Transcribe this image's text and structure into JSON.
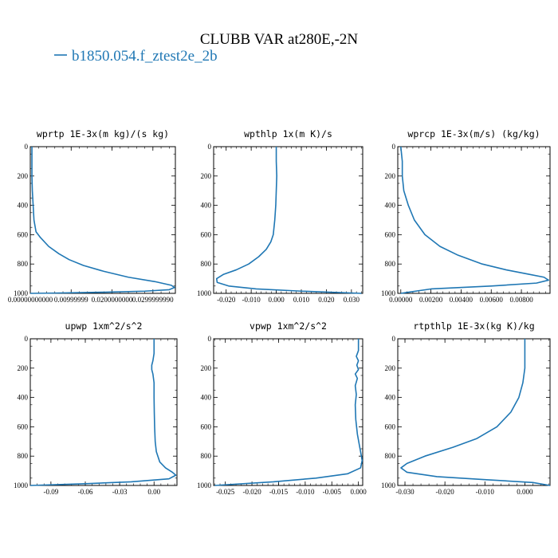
{
  "figure": {
    "title": "CLUBB VAR at280E,-2N",
    "legend": {
      "label": "b1850.054.f_ztest2e_2b",
      "color": "#1f77b4"
    }
  },
  "chart_data": [
    {
      "type": "line",
      "title": "wprtp  1E-3x(m kg)/(s kg)",
      "xlim": [
        0,
        0.0355
      ],
      "ylim": [
        1000,
        0
      ],
      "x_ticks": [
        0,
        0.01,
        0.02,
        0.03
      ],
      "x_tick_labels": [
        "0.00000000000",
        "0.00999999",
        "0.0200000000",
        "0.0299999990"
      ],
      "y_ticks": [
        0,
        200,
        400,
        600,
        800,
        1000
      ],
      "series": [
        {
          "color": "#1f77b4",
          "points": [
            [
              0.0004,
              0
            ],
            [
              0.0004,
              100
            ],
            [
              0.0004,
              200
            ],
            [
              0.0005,
              300
            ],
            [
              0.0007,
              400
            ],
            [
              0.0009,
              500
            ],
            [
              0.0014,
              580
            ],
            [
              0.0025,
              620
            ],
            [
              0.0045,
              680
            ],
            [
              0.007,
              730
            ],
            [
              0.0095,
              770
            ],
            [
              0.013,
              810
            ],
            [
              0.018,
              850
            ],
            [
              0.024,
              890
            ],
            [
              0.0305,
              920
            ],
            [
              0.0345,
              945
            ],
            [
              0.0353,
              960
            ],
            [
              0.034,
              975
            ],
            [
              0.028,
              985
            ],
            [
              0.018,
              992
            ],
            [
              0.006,
              998
            ],
            [
              0,
              1000
            ]
          ]
        }
      ]
    },
    {
      "type": "line",
      "title": "wpthlp  1x(m K)/s",
      "xlim": [
        -0.025,
        0.0345
      ],
      "ylim": [
        1000,
        0
      ],
      "x_ticks": [
        -0.02,
        -0.01,
        0,
        0.01,
        0.02,
        0.03
      ],
      "x_tick_labels": [
        "-0.020",
        "-0.010",
        "0.000",
        "0.010",
        "0.020",
        "0.030"
      ],
      "y_ticks": [
        0,
        200,
        400,
        600,
        800,
        1000
      ],
      "series": [
        {
          "color": "#1f77b4",
          "points": [
            [
              0,
              0
            ],
            [
              0,
              100
            ],
            [
              0.0002,
              200
            ],
            [
              0,
              300
            ],
            [
              -0.0002,
              400
            ],
            [
              -0.0006,
              500
            ],
            [
              -0.0012,
              600
            ],
            [
              -0.0022,
              650
            ],
            [
              -0.004,
              700
            ],
            [
              -0.007,
              750
            ],
            [
              -0.011,
              800
            ],
            [
              -0.016,
              840
            ],
            [
              -0.021,
              870
            ],
            [
              -0.0238,
              900
            ],
            [
              -0.0236,
              925
            ],
            [
              -0.019,
              950
            ],
            [
              -0.008,
              970
            ],
            [
              0.01,
              985
            ],
            [
              0.034,
              1000
            ]
          ]
        }
      ]
    },
    {
      "type": "line",
      "title": "wprcp  1E-3x(m/s) (kg/kg)",
      "xlim": [
        -0.0002,
        0.0099
      ],
      "ylim": [
        1000,
        0
      ],
      "x_ticks": [
        0,
        0.002,
        0.004,
        0.006,
        0.008
      ],
      "x_tick_labels": [
        "0.00000",
        "0.00200",
        "0.00400",
        "0.00600",
        "0.00800"
      ],
      "y_ticks": [
        0,
        200,
        400,
        600,
        800,
        1000
      ],
      "series": [
        {
          "color": "#1f77b4",
          "points": [
            [
              0,
              0
            ],
            [
              0.0001,
              100
            ],
            [
              0.0001,
              200
            ],
            [
              0.0002,
              300
            ],
            [
              0.0005,
              400
            ],
            [
              0.0009,
              500
            ],
            [
              0.0016,
              600
            ],
            [
              0.0026,
              680
            ],
            [
              0.0038,
              740
            ],
            [
              0.0054,
              800
            ],
            [
              0.007,
              840
            ],
            [
              0.0085,
              870
            ],
            [
              0.0095,
              890
            ],
            [
              0.0098,
              910
            ],
            [
              0.009,
              930
            ],
            [
              0.006,
              950
            ],
            [
              0.002,
              970
            ],
            [
              0,
              1000
            ]
          ]
        }
      ]
    },
    {
      "type": "line",
      "title": "upwp  1xm^2/s^2",
      "xlim": [
        -0.108,
        0.02
      ],
      "ylim": [
        1000,
        0
      ],
      "x_ticks": [
        -0.09,
        -0.06,
        -0.03,
        0
      ],
      "x_tick_labels": [
        "-0.09",
        "-0.06",
        "-0.03",
        "0.00"
      ],
      "y_ticks": [
        0,
        200,
        400,
        600,
        800,
        1000
      ],
      "series": [
        {
          "color": "#1f77b4",
          "points": [
            [
              0,
              0
            ],
            [
              0,
              100
            ],
            [
              -0.001,
              150
            ],
            [
              -0.002,
              180
            ],
            [
              -0.002,
              210
            ],
            [
              -0.001,
              240
            ],
            [
              0,
              300
            ],
            [
              0,
              400
            ],
            [
              0.0002,
              500
            ],
            [
              0.0005,
              600
            ],
            [
              0.001,
              700
            ],
            [
              0.002,
              770
            ],
            [
              0.005,
              840
            ],
            [
              0.01,
              880
            ],
            [
              0.016,
              910
            ],
            [
              0.019,
              930
            ],
            [
              0.013,
              955
            ],
            [
              -0.02,
              975
            ],
            [
              -0.06,
              988
            ],
            [
              -0.108,
              1000
            ]
          ]
        }
      ]
    },
    {
      "type": "line",
      "title": "vpwp  1xm^2/s^2",
      "xlim": [
        -0.0272,
        0.0008
      ],
      "ylim": [
        1000,
        0
      ],
      "x_ticks": [
        -0.025,
        -0.02,
        -0.015,
        -0.01,
        -0.005,
        0
      ],
      "x_tick_labels": [
        "-0.025",
        "-0.020",
        "-0.015",
        "-0.010",
        "-0.005",
        "0.000"
      ],
      "y_ticks": [
        0,
        200,
        400,
        600,
        800,
        1000
      ],
      "series": [
        {
          "color": "#1f77b4",
          "points": [
            [
              0,
              0
            ],
            [
              0,
              80
            ],
            [
              -0.0004,
              120
            ],
            [
              0,
              150
            ],
            [
              -0.0003,
              180
            ],
            [
              0,
              210
            ],
            [
              -0.0006,
              240
            ],
            [
              -0.0002,
              270
            ],
            [
              -0.0006,
              320
            ],
            [
              -0.0004,
              380
            ],
            [
              -0.0006,
              450
            ],
            [
              -0.0005,
              550
            ],
            [
              -0.0002,
              650
            ],
            [
              0.0003,
              750
            ],
            [
              0.0007,
              830
            ],
            [
              0.0004,
              880
            ],
            [
              -0.002,
              920
            ],
            [
              -0.008,
              950
            ],
            [
              -0.016,
              975
            ],
            [
              -0.027,
              1000
            ]
          ]
        }
      ]
    },
    {
      "type": "line",
      "title": "rtpthlp  1E-3x(kg K)/kg",
      "xlim": [
        -0.0318,
        0.0063
      ],
      "ylim": [
        1000,
        0
      ],
      "x_ticks": [
        -0.03,
        -0.02,
        -0.01,
        0
      ],
      "x_tick_labels": [
        "-0.030",
        "-0.020",
        "-0.010",
        "0.000"
      ],
      "y_ticks": [
        0,
        200,
        400,
        600,
        800,
        1000
      ],
      "series": [
        {
          "color": "#1f77b4",
          "points": [
            [
              0,
              0
            ],
            [
              0,
              100
            ],
            [
              0,
              200
            ],
            [
              -0.0005,
              300
            ],
            [
              -0.0015,
              400
            ],
            [
              -0.0035,
              500
            ],
            [
              -0.007,
              600
            ],
            [
              -0.012,
              680
            ],
            [
              -0.018,
              740
            ],
            [
              -0.025,
              800
            ],
            [
              -0.0295,
              850
            ],
            [
              -0.031,
              880
            ],
            [
              -0.0295,
              910
            ],
            [
              -0.022,
              940
            ],
            [
              -0.01,
              960
            ],
            [
              0.002,
              980
            ],
            [
              0.0063,
              1000
            ]
          ]
        }
      ]
    }
  ]
}
